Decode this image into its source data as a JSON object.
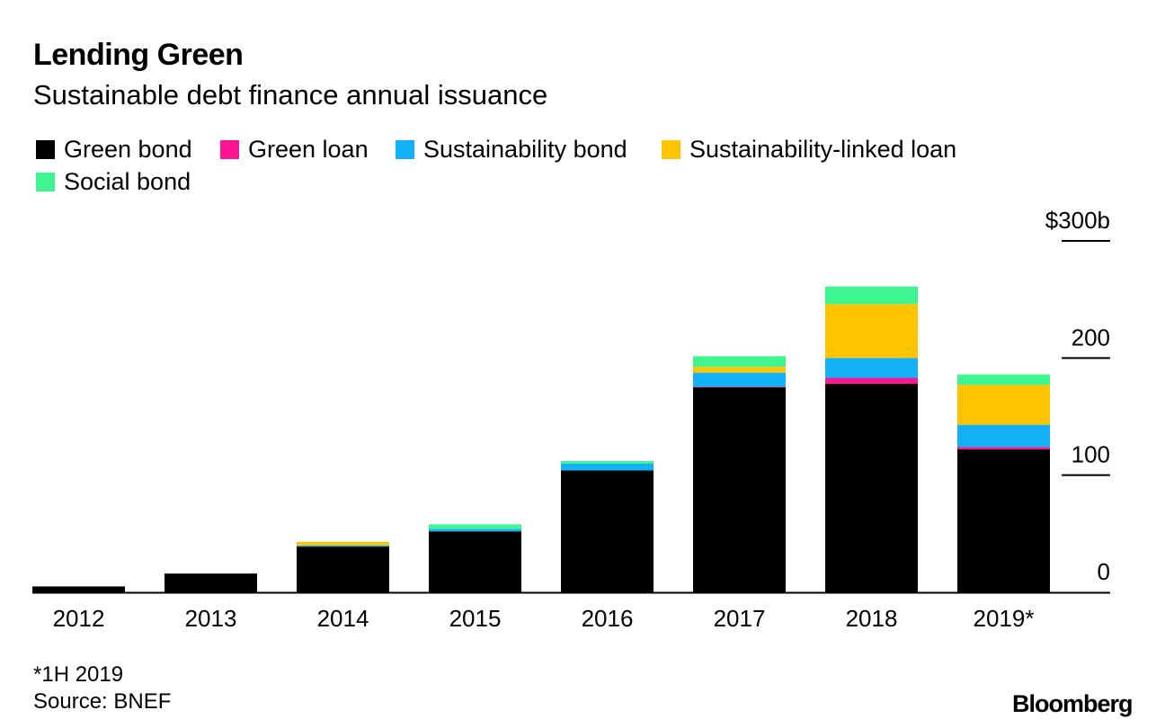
{
  "colors": {
    "green_bond": "#000000",
    "green_loan": "#ff1493",
    "sustainability_bond": "#12b0f5",
    "sustainability_linked_loan": "#ffc400",
    "social_bond": "#3ef58f"
  },
  "footnote": "*1H 2019",
  "source": "Source: BNEF",
  "brand": "Bloomberg",
  "chart_data": {
    "type": "bar",
    "stacked": true,
    "title": "Lending Green",
    "subtitle": "Sustainable debt finance annual issuance",
    "xlabel": "",
    "ylabel": "",
    "ylim": [
      0,
      300
    ],
    "yticks": [
      {
        "value": 0,
        "label": "0"
      },
      {
        "value": 100,
        "label": "100"
      },
      {
        "value": 200,
        "label": "200"
      },
      {
        "value": 300,
        "label": "$300b"
      }
    ],
    "categories": [
      "2012",
      "2013",
      "2014",
      "2015",
      "2016",
      "2017",
      "2018",
      "2019*"
    ],
    "legend_position": "top-left",
    "series": [
      {
        "name": "Green bond",
        "key": "green_bond",
        "values": [
          5,
          16,
          39,
          52,
          104,
          175,
          178,
          122
        ]
      },
      {
        "name": "Green loan",
        "key": "green_loan",
        "values": [
          0,
          0,
          0,
          0,
          0,
          0.5,
          5,
          2
        ]
      },
      {
        "name": "Sustainability bond",
        "key": "sustainability_bond",
        "values": [
          0,
          0,
          1,
          2,
          6,
          12,
          17,
          19
        ]
      },
      {
        "name": "Sustainability-linked loan",
        "key": "sustainability_linked_loan",
        "values": [
          0,
          0,
          3,
          0,
          0,
          5,
          46,
          34
        ]
      },
      {
        "name": "Social bond",
        "key": "social_bond",
        "values": [
          0,
          0,
          0,
          4,
          2,
          9,
          15,
          9
        ]
      }
    ]
  }
}
